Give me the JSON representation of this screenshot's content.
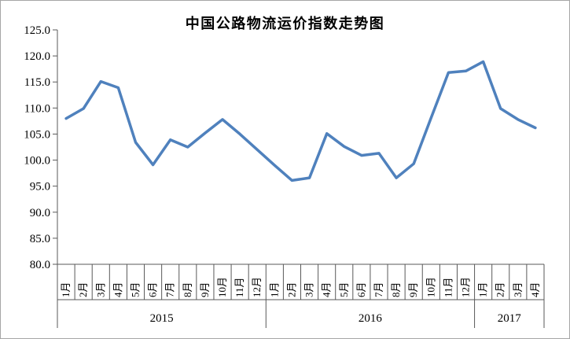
{
  "chart_data": {
    "type": "line",
    "title": "中国公路物流运价指数走势图",
    "categories": [
      "1月",
      "2月",
      "3月",
      "4月",
      "5月",
      "6月",
      "7月",
      "8月",
      "9月",
      "10月",
      "11月",
      "12月",
      "1月",
      "2月",
      "3月",
      "4月",
      "5月",
      "6月",
      "7月",
      "8月",
      "9月",
      "10月",
      "11月",
      "12月",
      "1月",
      "2月",
      "3月",
      "4月"
    ],
    "year_groups": [
      {
        "label": "2015",
        "count": 12
      },
      {
        "label": "2016",
        "count": 12
      },
      {
        "label": "2017",
        "count": 4
      }
    ],
    "series": [
      {
        "name": "中国公路物流运价指数",
        "values": [
          108.0,
          109.9,
          115.1,
          113.9,
          103.4,
          99.1,
          103.9,
          102.5,
          105.2,
          107.8,
          105.0,
          102.0,
          99.0,
          96.1,
          96.6,
          105.1,
          102.6,
          100.9,
          101.3,
          96.6,
          99.3,
          108.1,
          116.8,
          117.1,
          118.9,
          109.9,
          107.8,
          106.2
        ]
      }
    ],
    "ylim": [
      80.0,
      125.0
    ],
    "ytick_step": 5.0,
    "yticks": [
      "125.0",
      "120.0",
      "115.0",
      "110.0",
      "105.0",
      "100.0",
      "95.0",
      "90.0",
      "85.0",
      "80.0"
    ],
    "xlabel": "",
    "ylabel": "",
    "grid": false,
    "legend_position": "none",
    "line_color": "#4F81BD",
    "axis_color": "#595959",
    "border_color": "#A6A6A6",
    "background": "#FFFFFF"
  }
}
